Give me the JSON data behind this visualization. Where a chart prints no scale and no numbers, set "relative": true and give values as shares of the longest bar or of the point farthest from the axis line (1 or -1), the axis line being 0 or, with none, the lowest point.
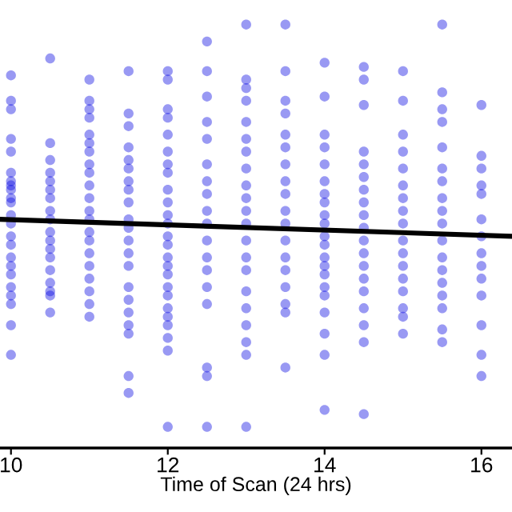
{
  "chart_data": {
    "type": "scatter",
    "xlabel": "Time of Scan (24 hrs)",
    "relative": true,
    "xlim": [
      9.86,
      16.39
    ],
    "xticks": [
      10,
      12,
      14,
      16
    ],
    "tick_labels": "x",
    "grid": false,
    "legend": false,
    "marker": "circle",
    "series": [
      {
        "color": "#0000e0",
        "x": [
          10,
          10,
          10,
          10,
          10,
          10,
          10,
          10,
          10,
          10,
          10,
          10,
          10,
          10,
          10,
          10,
          10,
          10,
          10,
          10,
          10,
          10,
          10,
          10.5,
          10.5,
          10.5,
          10.5,
          10.5,
          10.5,
          10.5,
          10.5,
          10.5,
          10.5,
          10.5,
          10.5,
          10.5,
          10.5,
          10.5,
          10.5,
          10.5,
          10.5,
          11,
          11,
          11,
          11,
          11,
          11,
          11,
          11,
          11,
          11,
          11,
          11,
          11,
          11,
          11,
          11,
          11,
          11,
          11,
          11,
          11,
          11.5,
          11.5,
          11.5,
          11.5,
          11.5,
          11.5,
          11.5,
          11.5,
          11.5,
          11.5,
          11.5,
          11.5,
          11.5,
          11.5,
          11.5,
          11.5,
          11.5,
          11.5,
          11.5,
          11.5,
          11.5,
          12,
          12,
          12,
          12,
          12,
          12,
          12,
          12,
          12,
          12,
          12,
          12,
          12,
          12,
          12,
          12,
          12,
          12,
          12,
          12,
          12,
          12,
          12,
          12,
          12,
          12.5,
          12.5,
          12.5,
          12.5,
          12.5,
          12.5,
          12.5,
          12.5,
          12.5,
          12.5,
          12.5,
          12.5,
          12.5,
          12.5,
          12.5,
          12.5,
          12.5,
          12.5,
          13,
          13,
          13,
          13,
          13,
          13,
          13,
          13,
          13,
          13,
          13,
          13,
          13,
          13,
          13,
          13,
          13,
          13,
          13,
          13,
          13,
          13.5,
          13.5,
          13.5,
          13.5,
          13.5,
          13.5,
          13.5,
          13.5,
          13.5,
          13.5,
          13.5,
          13.5,
          13.5,
          13.5,
          13.5,
          13.5,
          13.5,
          13.5,
          14,
          14,
          14,
          14,
          14,
          14,
          14,
          14,
          14,
          14,
          14,
          14,
          14,
          14,
          14,
          14,
          14,
          14,
          14,
          14,
          14,
          14.5,
          14.5,
          14.5,
          14.5,
          14.5,
          14.5,
          14.5,
          14.5,
          14.5,
          14.5,
          14.5,
          14.5,
          14.5,
          14.5,
          14.5,
          14.5,
          14.5,
          14.5,
          14.5,
          15,
          15,
          15,
          15,
          15,
          15,
          15,
          15,
          15,
          15,
          15,
          15,
          15,
          15,
          15,
          15,
          15,
          15.5,
          15.5,
          15.5,
          15.5,
          15.5,
          15.5,
          15.5,
          15.5,
          15.5,
          15.5,
          15.5,
          15.5,
          15.5,
          15.5,
          15.5,
          15.5,
          15.5,
          15.5,
          16,
          16,
          16,
          16,
          16,
          16,
          16,
          16,
          16,
          16,
          16,
          16,
          16,
          16
        ],
        "values": [
          0.88,
          0.82,
          0.8,
          0.73,
          0.7,
          0.65,
          0.63,
          0.62,
          0.61,
          0.59,
          0.58,
          0.55,
          0.53,
          0.5,
          0.48,
          0.45,
          0.43,
          0.41,
          0.38,
          0.36,
          0.34,
          0.29,
          0.22,
          0.92,
          0.72,
          0.68,
          0.65,
          0.63,
          0.61,
          0.59,
          0.56,
          0.54,
          0.51,
          0.49,
          0.47,
          0.45,
          0.42,
          0.39,
          0.37,
          0.36,
          0.32,
          0.87,
          0.82,
          0.8,
          0.78,
          0.74,
          0.72,
          0.7,
          0.67,
          0.65,
          0.62,
          0.59,
          0.56,
          0.54,
          0.51,
          0.49,
          0.46,
          0.43,
          0.4,
          0.37,
          0.34,
          0.31,
          0.89,
          0.79,
          0.76,
          0.71,
          0.68,
          0.66,
          0.63,
          0.61,
          0.58,
          0.54,
          0.52,
          0.49,
          0.46,
          0.43,
          0.38,
          0.35,
          0.32,
          0.29,
          0.27,
          0.17,
          0.13,
          0.89,
          0.87,
          0.8,
          0.78,
          0.74,
          0.7,
          0.67,
          0.65,
          0.61,
          0.58,
          0.55,
          0.53,
          0.5,
          0.48,
          0.45,
          0.43,
          0.41,
          0.38,
          0.36,
          0.33,
          0.31,
          0.29,
          0.26,
          0.23,
          0.05,
          0.96,
          0.89,
          0.83,
          0.77,
          0.73,
          0.67,
          0.63,
          0.6,
          0.56,
          0.53,
          0.49,
          0.45,
          0.42,
          0.38,
          0.34,
          0.19,
          0.17,
          0.05,
          1.0,
          0.87,
          0.85,
          0.82,
          0.77,
          0.73,
          0.7,
          0.66,
          0.62,
          0.59,
          0.56,
          0.53,
          0.49,
          0.45,
          0.42,
          0.37,
          0.33,
          0.29,
          0.25,
          0.22,
          0.05,
          1.0,
          0.89,
          0.82,
          0.79,
          0.74,
          0.71,
          0.67,
          0.63,
          0.6,
          0.56,
          0.53,
          0.49,
          0.45,
          0.42,
          0.38,
          0.34,
          0.32,
          0.19,
          0.91,
          0.83,
          0.74,
          0.71,
          0.67,
          0.63,
          0.6,
          0.58,
          0.55,
          0.53,
          0.5,
          0.48,
          0.45,
          0.43,
          0.41,
          0.38,
          0.36,
          0.32,
          0.27,
          0.22,
          0.09,
          0.9,
          0.87,
          0.81,
          0.7,
          0.67,
          0.64,
          0.61,
          0.58,
          0.55,
          0.52,
          0.49,
          0.46,
          0.43,
          0.4,
          0.37,
          0.33,
          0.29,
          0.25,
          0.08,
          0.89,
          0.82,
          0.74,
          0.7,
          0.66,
          0.62,
          0.59,
          0.56,
          0.53,
          0.49,
          0.46,
          0.43,
          0.4,
          0.37,
          0.33,
          0.31,
          0.27,
          1.0,
          0.84,
          0.8,
          0.77,
          0.71,
          0.66,
          0.63,
          0.59,
          0.56,
          0.53,
          0.49,
          0.45,
          0.42,
          0.39,
          0.36,
          0.33,
          0.28,
          0.25,
          0.81,
          0.69,
          0.66,
          0.62,
          0.6,
          0.54,
          0.5,
          0.46,
          0.43,
          0.4,
          0.36,
          0.29,
          0.22,
          0.17
        ]
      },
      {
        "type": "line",
        "color": "#000000",
        "line_style": "solid",
        "marker": "none",
        "x": [
          9.86,
          16.39
        ],
        "values": [
          0.54,
          0.5
        ]
      }
    ]
  }
}
